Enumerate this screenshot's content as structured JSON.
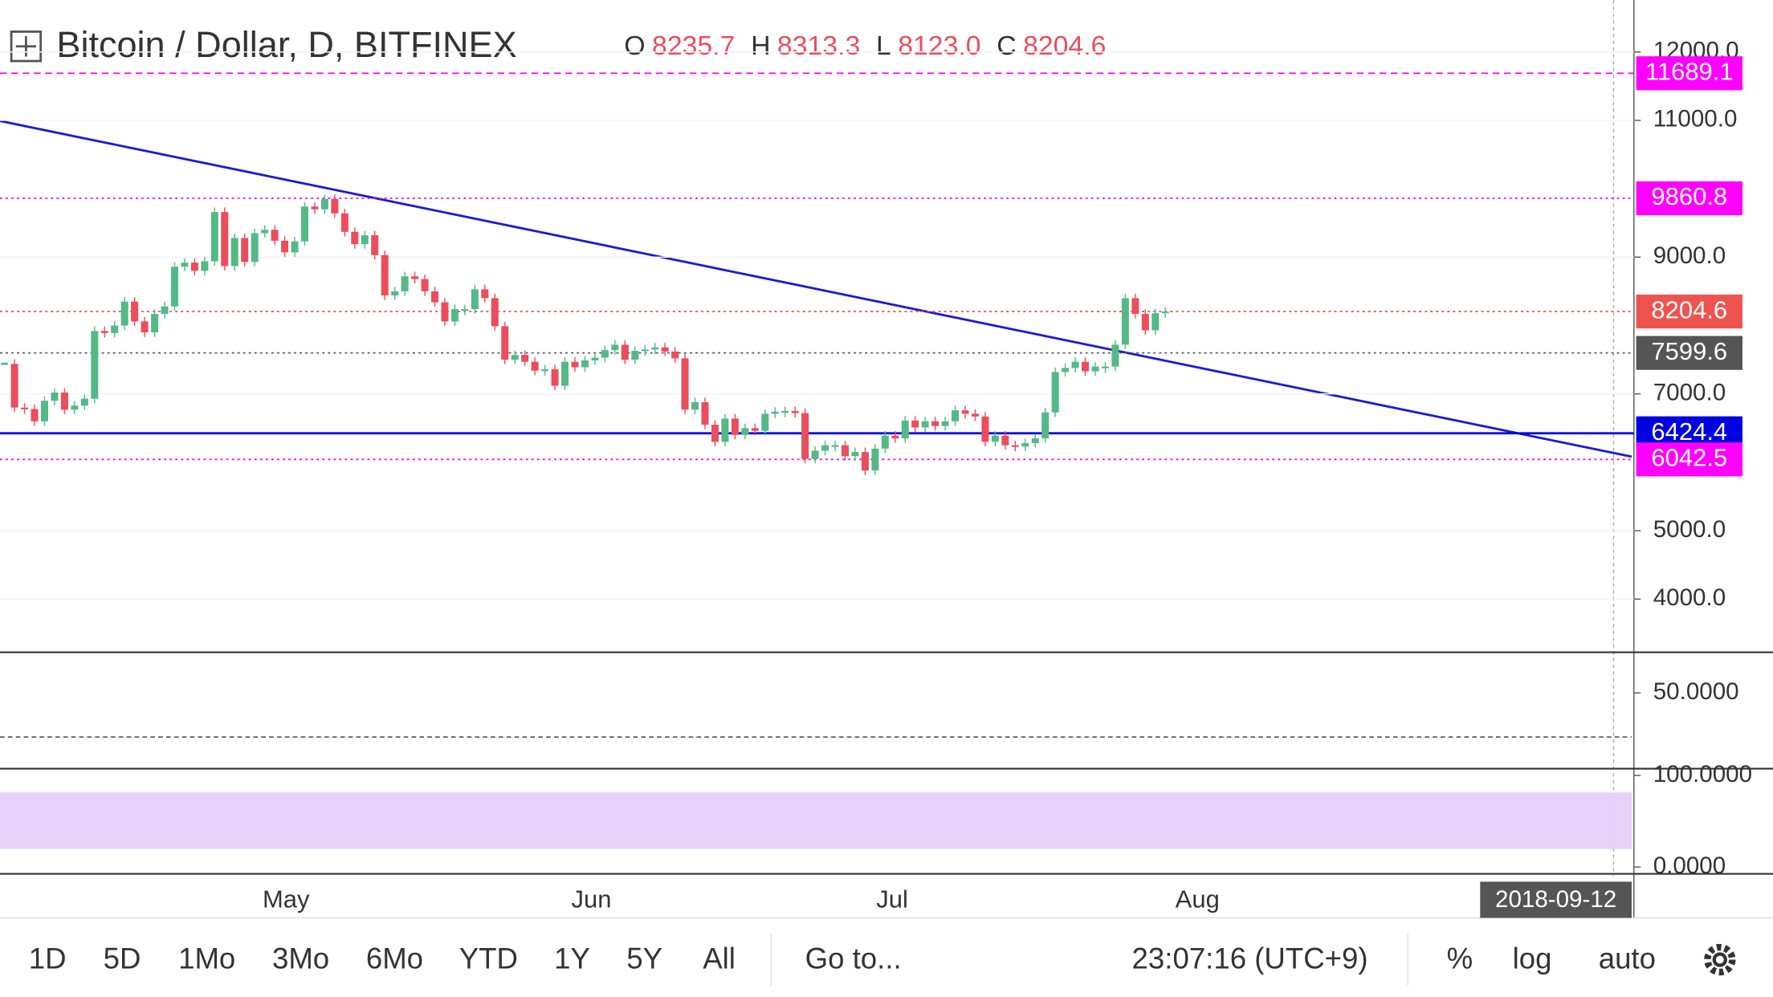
{
  "header": {
    "symbol": "Bitcoin / Dollar, D, BITFINEX",
    "ohlc": [
      {
        "label": "O",
        "value": "8235.7"
      },
      {
        "label": "H",
        "value": "8313.3"
      },
      {
        "label": "L",
        "value": "8123.0"
      },
      {
        "label": "C",
        "value": "8204.6"
      }
    ]
  },
  "chart_data": {
    "type": "candlestick",
    "closes": [
      7440,
      6800,
      6780,
      6600,
      6900,
      7020,
      6770,
      6830,
      6930,
      7920,
      7890,
      8000,
      8350,
      8060,
      7900,
      8170,
      8280,
      8860,
      8920,
      8800,
      8940,
      9660,
      8870,
      9280,
      8930,
      9350,
      9400,
      9240,
      9070,
      9230,
      9740,
      9700,
      9850,
      9640,
      9370,
      9190,
      9320,
      9030,
      8440,
      8500,
      8720,
      8680,
      8500,
      8340,
      8060,
      8240,
      8240,
      8530,
      8400,
      7990,
      7500,
      7570,
      7470,
      7340,
      7360,
      7120,
      7470,
      7390,
      7490,
      7530,
      7640,
      7720,
      7500,
      7630,
      7650,
      7680,
      7620,
      7520,
      6770,
      6880,
      6550,
      6300,
      6640,
      6400,
      6500,
      6460,
      6710,
      6740,
      6750,
      6720,
      6050,
      6170,
      6250,
      6250,
      6090,
      6150,
      5880,
      6200,
      6390,
      6350,
      6610,
      6510,
      6600,
      6530,
      6600,
      6760,
      6710,
      6670,
      6300,
      6390,
      6250,
      6230,
      6280,
      6350,
      6730,
      7320,
      7380,
      7470,
      7330,
      7400,
      7400,
      7720,
      8400,
      8170,
      7930,
      8180,
      8204.6
    ],
    "up_color": "#53b987",
    "down_color": "#eb4d5c",
    "ylim": [
      3223,
      12760
    ],
    "yticks": [
      {
        "value": 12000,
        "label": "12000.0"
      },
      {
        "value": 11000,
        "label": "11000.0"
      },
      {
        "value": 9000,
        "label": "9000.0"
      },
      {
        "value": 7000,
        "label": "7000.0"
      },
      {
        "value": 5000,
        "label": "5000.0"
      },
      {
        "value": 4000,
        "label": "4000.0"
      }
    ],
    "x_labels": [
      "May",
      "Jun",
      "Jul",
      "Aug"
    ],
    "price_lines": [
      {
        "value": 11689.1,
        "label": "11689.1",
        "color": "#ff00ff",
        "style": "dashed"
      },
      {
        "value": 9860.8,
        "label": "9860.8",
        "color": "#ff00ff",
        "style": "dotted"
      },
      {
        "value": 8204.6,
        "label": "8204.6",
        "color": "#ef5350",
        "style": "dotted"
      },
      {
        "value": 7599.6,
        "label": "7599.6",
        "color": "#555555",
        "style": "dotted"
      },
      {
        "value": 6424.4,
        "label": "6424.4",
        "color": "#0000e0",
        "style": "solid"
      },
      {
        "value": 6042.5,
        "label": "6042.5",
        "color": "#ff00ff",
        "style": "dotted"
      }
    ]
  },
  "lower_panes": [
    {
      "ticks": [
        {
          "value": 50,
          "label": "50.0000"
        }
      ]
    },
    {
      "ticks": [
        {
          "value": 100,
          "label": "100.0000"
        },
        {
          "value": 0,
          "label": "0.0000"
        }
      ]
    }
  ],
  "date_label": "2018-09-12",
  "toolbar": {
    "ranges": [
      "1D",
      "5D",
      "1Mo",
      "3Mo",
      "6Mo",
      "YTD",
      "1Y",
      "5Y",
      "All"
    ],
    "goto": "Go to...",
    "clock": "23:07:16 (UTC+9)",
    "options": [
      "%",
      "log",
      "auto"
    ]
  }
}
